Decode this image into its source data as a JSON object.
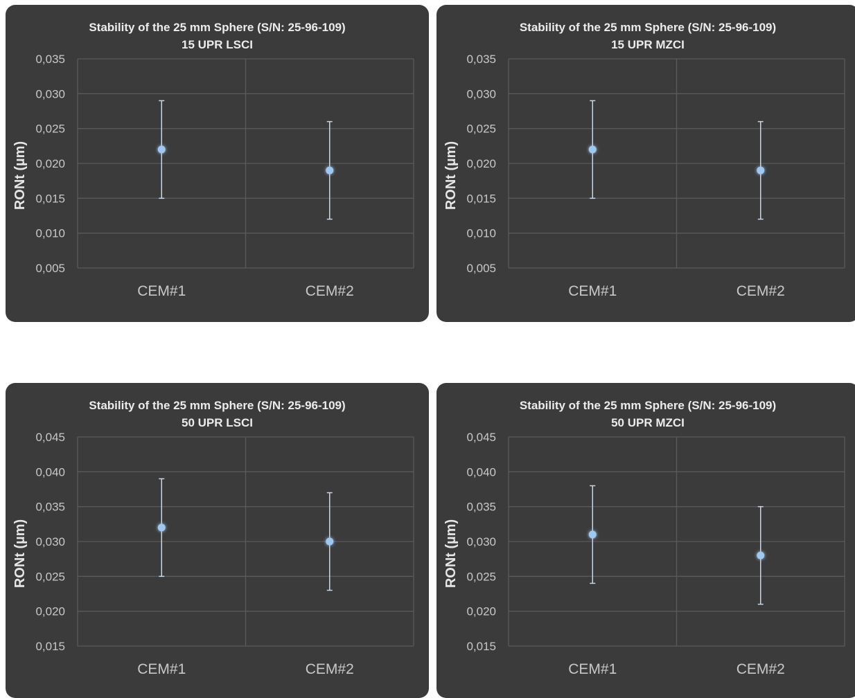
{
  "chart_data": [
    {
      "type": "scatter",
      "title": "Stability of the  25 mm Sphere (S/N: 25-96-109)",
      "subtitle": "15 UPR LSCI",
      "ylabel": "RONt (µm)",
      "categories": [
        "CEM#1",
        "CEM#2"
      ],
      "values": [
        0.022,
        0.019
      ],
      "error_low": [
        0.015,
        0.012
      ],
      "error_high": [
        0.029,
        0.026
      ],
      "ylim": [
        0.005,
        0.035
      ],
      "yticks": [
        0.035,
        0.03,
        0.025,
        0.02,
        0.015,
        0.01,
        0.005
      ],
      "yticklabels": [
        "0,035",
        "0,030",
        "0,025",
        "0,020",
        "0,015",
        "0,010",
        "0,005"
      ],
      "grid": true,
      "legend": "none"
    },
    {
      "type": "scatter",
      "title": "Stability of the  25 mm Sphere (S/N: 25-96-109)",
      "subtitle": "15 UPR MZCI",
      "ylabel": "RONt (µm)",
      "categories": [
        "CEM#1",
        "CEM#2"
      ],
      "values": [
        0.022,
        0.019
      ],
      "error_low": [
        0.015,
        0.012
      ],
      "error_high": [
        0.029,
        0.026
      ],
      "ylim": [
        0.005,
        0.035
      ],
      "yticks": [
        0.035,
        0.03,
        0.025,
        0.02,
        0.015,
        0.01,
        0.005
      ],
      "yticklabels": [
        "0,035",
        "0,030",
        "0,025",
        "0,020",
        "0,015",
        "0,010",
        "0,005"
      ],
      "grid": true,
      "legend": "none"
    },
    {
      "type": "scatter",
      "title": "Stability of the  25 mm Sphere (S/N: 25-96-109)",
      "subtitle": "50 UPR LSCI",
      "ylabel": "RONt (µm)",
      "categories": [
        "CEM#1",
        "CEM#2"
      ],
      "values": [
        0.032,
        0.03
      ],
      "error_low": [
        0.025,
        0.023
      ],
      "error_high": [
        0.039,
        0.037
      ],
      "ylim": [
        0.015,
        0.045
      ],
      "yticks": [
        0.045,
        0.04,
        0.035,
        0.03,
        0.025,
        0.02,
        0.015
      ],
      "yticklabels": [
        "0,045",
        "0,040",
        "0,035",
        "0,030",
        "0,025",
        "0,020",
        "0,015"
      ],
      "grid": true,
      "legend": "none"
    },
    {
      "type": "scatter",
      "title": "Stability of the  25 mm Sphere (S/N: 25-96-109)",
      "subtitle": "50 UPR MZCI",
      "ylabel": "RONt (µm)",
      "categories": [
        "CEM#1",
        "CEM#2"
      ],
      "values": [
        0.031,
        0.028
      ],
      "error_low": [
        0.024,
        0.021
      ],
      "error_high": [
        0.038,
        0.035
      ],
      "ylim": [
        0.015,
        0.045
      ],
      "yticks": [
        0.045,
        0.04,
        0.035,
        0.03,
        0.025,
        0.02,
        0.015
      ],
      "yticklabels": [
        "0,045",
        "0,040",
        "0,035",
        "0,030",
        "0,025",
        "0,020",
        "0,015"
      ],
      "grid": true,
      "legend": "none"
    }
  ],
  "colors": {
    "panel_background": "#3b3b3b",
    "gridline": "#5a5a5a",
    "tick_text": "#c8c8c8",
    "point": "#9fc8f0",
    "error_bar": "#c9d6e6"
  }
}
